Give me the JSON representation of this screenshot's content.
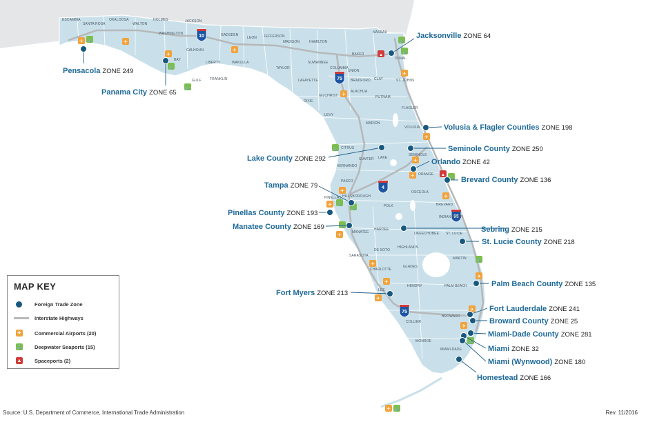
{
  "map_key": {
    "title": "MAP KEY",
    "items": [
      {
        "label": "Foreign Trade Zone",
        "icon": "ftz-dot-icon"
      },
      {
        "label": "Interstate Highways",
        "icon": "highway-line-icon"
      },
      {
        "label": "Commercial Airports (20)",
        "icon": "airplane-icon"
      },
      {
        "label": "Deepwater Seaports (15)",
        "icon": "ship-icon"
      },
      {
        "label": "Spaceports (2)",
        "icon": "rocket-icon"
      }
    ]
  },
  "zones": [
    {
      "name": "Pensacola",
      "zone": "ZONE 249"
    },
    {
      "name": "Panama City",
      "zone": "ZONE 65"
    },
    {
      "name": "Jacksonville",
      "zone": "ZONE 64"
    },
    {
      "name": "Volusia & Flagler Counties",
      "zone": "ZONE 198"
    },
    {
      "name": "Seminole County",
      "zone": "ZONE 250"
    },
    {
      "name": "Orlando",
      "zone": "ZONE 42"
    },
    {
      "name": "Lake County",
      "zone": "ZONE 292"
    },
    {
      "name": "Brevard County",
      "zone": "ZONE 136"
    },
    {
      "name": "Tampa",
      "zone": "ZONE 79"
    },
    {
      "name": "Pinellas County",
      "zone": "ZONE 193"
    },
    {
      "name": "Manatee County",
      "zone": "ZONE 169"
    },
    {
      "name": "Sebring",
      "zone": "ZONE 215"
    },
    {
      "name": "St. Lucie County",
      "zone": "ZONE 218"
    },
    {
      "name": "Palm Beach County",
      "zone": "ZONE 135"
    },
    {
      "name": "Fort Myers",
      "zone": "ZONE 213"
    },
    {
      "name": "Fort Lauderdale",
      "zone": "ZONE 241"
    },
    {
      "name": "Broward County",
      "zone": "ZONE 25"
    },
    {
      "name": "Miami-Dade County",
      "zone": "ZONE 281"
    },
    {
      "name": "Miami",
      "zone": "ZONE 32"
    },
    {
      "name": "Miami (Wynwood)",
      "zone": "ZONE 180"
    },
    {
      "name": "Homestead",
      "zone": "ZONE 166"
    }
  ],
  "interstates": [
    "10",
    "75",
    "95",
    "4",
    "75"
  ],
  "counties": [
    "ESCAMBIA",
    "SANTA ROSA",
    "OKALOOSA",
    "WALTON",
    "HOLMES",
    "JACKSON",
    "WASHINGTON",
    "BAY",
    "CALHOUN",
    "GULF",
    "LIBERTY",
    "FRANKLIN",
    "GADSDEN",
    "LEON",
    "WAKULLA",
    "JEFFERSON",
    "MADISON",
    "HAMILTON",
    "TAYLOR",
    "SUWANNEE",
    "COLUMBIA",
    "BAKER",
    "NASSAU",
    "DUVAL",
    "UNION",
    "BRADFORD",
    "CLAY",
    "ST. JOHNS",
    "LAFAYETTE",
    "DIXIE",
    "GILCHRIST",
    "ALACHUA",
    "PUTNAM",
    "FLAGLER",
    "LEVY",
    "MARION",
    "VOLUSIA",
    "CITRUS",
    "SUMTER",
    "LAKE",
    "SEMINOLE",
    "HERNANDO",
    "ORANGE",
    "PASCO",
    "PINELLAS",
    "HILLSBOROUGH",
    "OSCEOLA",
    "BREVARD",
    "POLK",
    "INDIAN RIVER",
    "HARDEE",
    "OKEECHOBEE",
    "ST. LUCIE",
    "MANATEE",
    "DE SOTO",
    "HIGHLANDS",
    "SARASOTA",
    "MARTIN",
    "CHARLOTTE",
    "GLADES",
    "HENDRY",
    "PALM BEACH",
    "LEE",
    "COLLIER",
    "BROWARD",
    "MONROE",
    "MIAMI-DADE"
  ],
  "colors": {
    "land": "#c9e0ea",
    "border": "#ffffff",
    "ocean": "#ffffff",
    "ftz": "#18587f",
    "zone_label": "#1f6a99",
    "highway": "#b8b8b8",
    "airport": "#f2a23a",
    "seaport": "#7cbf4b",
    "spaceport": "#d23a3a",
    "interstate_shield": "#1d55a3"
  },
  "footer": {
    "source": "Source: U.S. Department of Commerce, International Trade Administration",
    "revision": "Rev. 11/2016"
  }
}
